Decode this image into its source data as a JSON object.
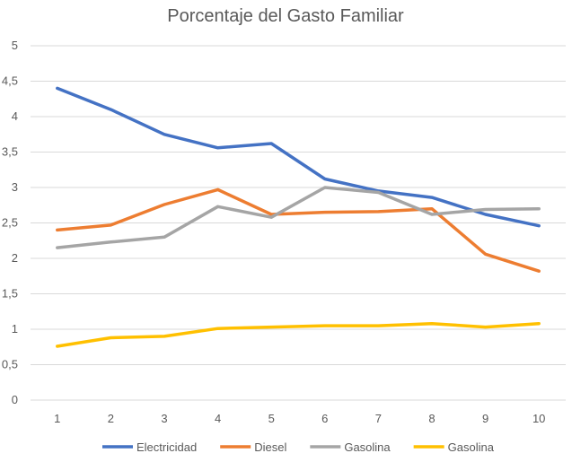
{
  "chart_data": {
    "type": "line",
    "title": "Porcentaje del Gasto Familiar",
    "x": [
      "1",
      "2",
      "3",
      "4",
      "5",
      "6",
      "7",
      "8",
      "9",
      "10"
    ],
    "ylim": [
      0,
      5
    ],
    "yticks": [
      "0",
      "0,5",
      "1",
      "1,5",
      "2",
      "2,5",
      "3",
      "3,5",
      "4",
      "4,5",
      "5"
    ],
    "ytick_values": [
      0,
      0.5,
      1,
      1.5,
      2,
      2.5,
      3,
      3.5,
      4,
      4.5,
      5
    ],
    "grid": true,
    "legend_position": "bottom",
    "series": [
      {
        "name": "Electricidad",
        "color": "#4472c4",
        "values": [
          4.4,
          4.1,
          3.75,
          3.56,
          3.62,
          3.12,
          2.95,
          2.86,
          2.62,
          2.46
        ]
      },
      {
        "name": "Diesel",
        "color": "#ed7d31",
        "values": [
          2.4,
          2.47,
          2.76,
          2.97,
          2.62,
          2.65,
          2.66,
          2.7,
          2.06,
          1.82
        ]
      },
      {
        "name": "Gasolina",
        "color": "#a5a5a5",
        "values": [
          2.15,
          2.23,
          2.3,
          2.73,
          2.58,
          3.0,
          2.93,
          2.62,
          2.69,
          2.7
        ]
      },
      {
        "name": "Gasolina",
        "color": "#ffc000",
        "values": [
          0.76,
          0.88,
          0.9,
          1.01,
          1.03,
          1.05,
          1.05,
          1.08,
          1.03,
          1.08
        ]
      }
    ]
  }
}
